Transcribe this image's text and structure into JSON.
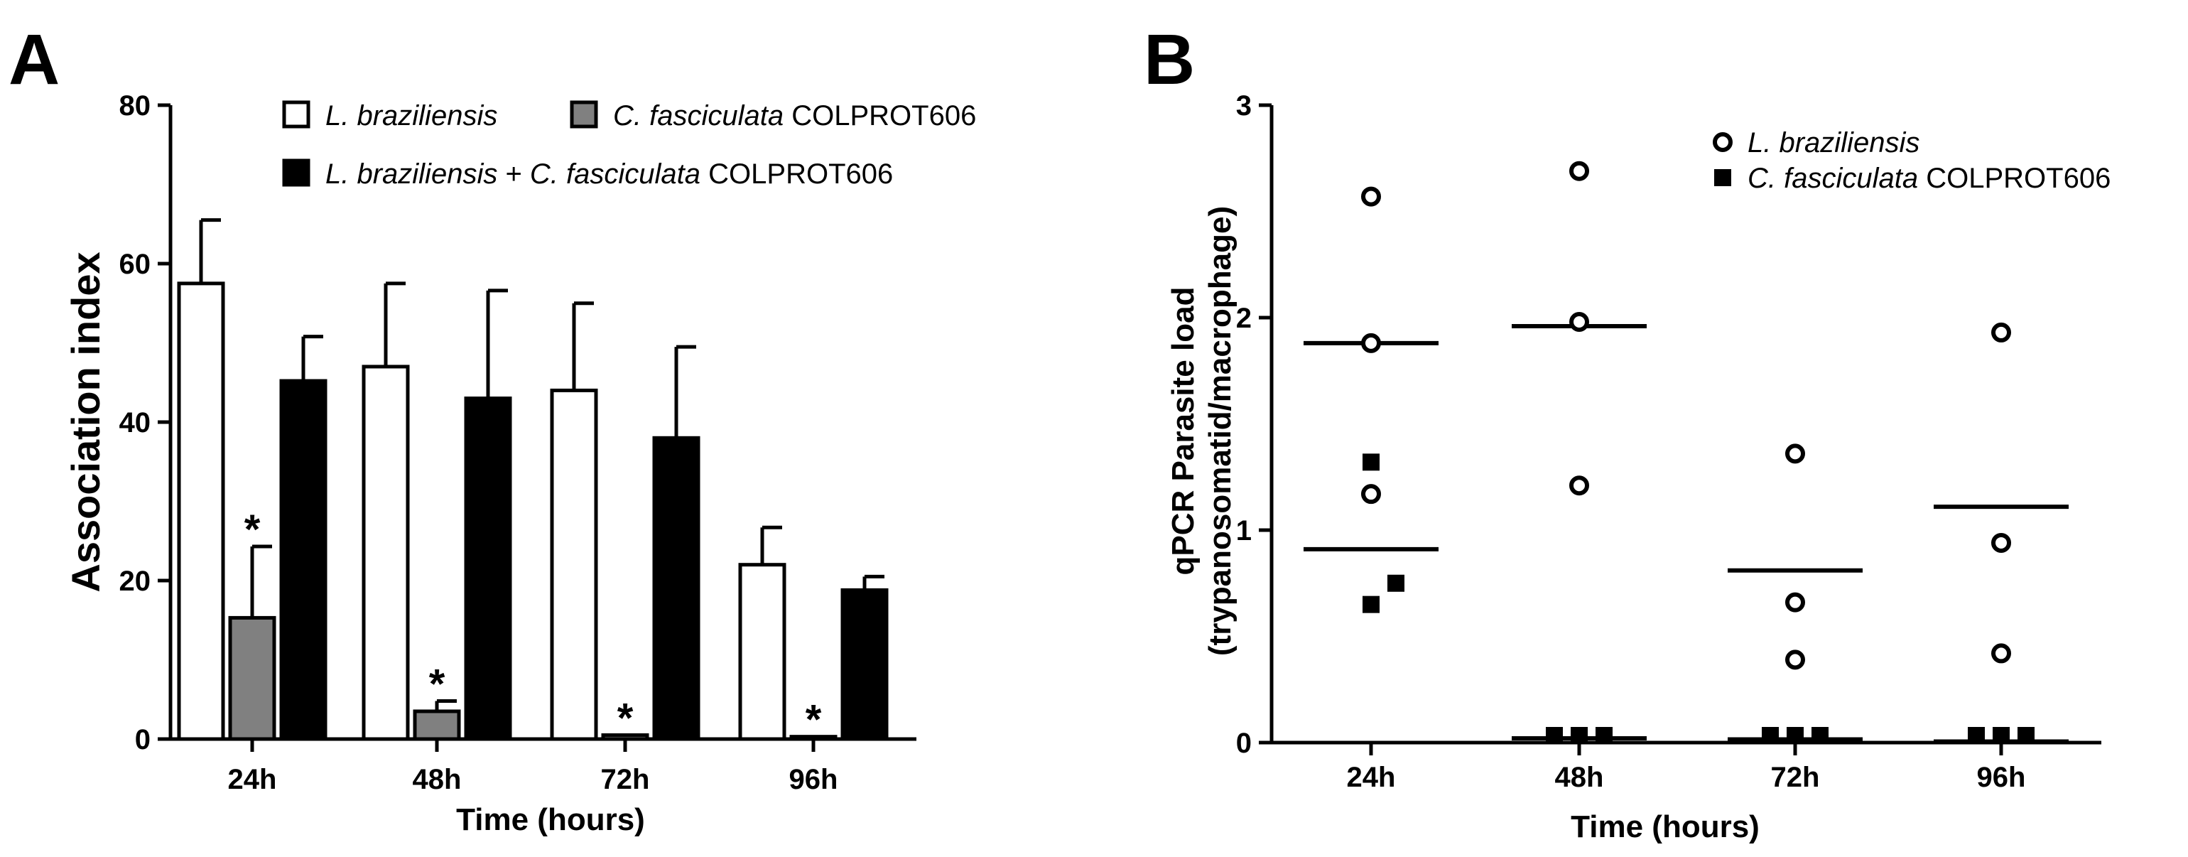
{
  "panel_a_letter": "A",
  "panel_b_letter": "B",
  "chart_data": [
    {
      "type": "bar",
      "panel": "A",
      "xlabel": "Time (hours)",
      "ylabel": "Association index",
      "ylim": [
        0,
        80
      ],
      "yticks": [
        "0",
        "20",
        "40",
        "60",
        "80"
      ],
      "categories": [
        "24h",
        "48h",
        "72h",
        "96h"
      ],
      "legend_placement": "top",
      "series": [
        {
          "name_italic": "L. braziliensis",
          "name_rest": "",
          "fill": "#ffffff",
          "values": [
            57.5,
            47,
            44,
            22
          ],
          "errors": [
            8,
            10.5,
            11,
            4.7
          ]
        },
        {
          "name_italic": "C. fasciculata",
          "name_rest": " COLPROT606",
          "fill": "#808080",
          "values": [
            15.3,
            3.5,
            0.5,
            0.3
          ],
          "errors": [
            9,
            1.3,
            0,
            0
          ]
        },
        {
          "name_italic": "L. braziliensis",
          "name_plain_mid": " + ",
          "name_italic2": "C. fasciculata",
          "name_rest": " COLPROT606",
          "fill": "#000000",
          "values": [
            45.2,
            43,
            38,
            18.8
          ],
          "errors": [
            5.6,
            13.6,
            11.5,
            1.7
          ]
        }
      ],
      "annotations": [
        {
          "text": "*",
          "category": "24h",
          "series": 1
        },
        {
          "text": "*",
          "category": "48h",
          "series": 1
        },
        {
          "text": "*",
          "category": "72h",
          "series": 1
        },
        {
          "text": "*",
          "category": "96h",
          "series": 1
        }
      ]
    },
    {
      "type": "scatter",
      "panel": "B",
      "xlabel": "Time (hours)",
      "ylabel_line1": "qPCR Parasite load",
      "ylabel_line2": "(trypanosomatid/macrophage)",
      "ylim": [
        0,
        3
      ],
      "yticks": [
        "0",
        "1",
        "2",
        "3"
      ],
      "categories": [
        "24h",
        "48h",
        "72h",
        "96h"
      ],
      "legend_placement": "top-right",
      "series": [
        {
          "name_italic": "L. braziliensis",
          "name_rest": "",
          "marker": "open-circle",
          "points": [
            {
              "category": "24h",
              "offset": 0,
              "y": 2.57
            },
            {
              "category": "24h",
              "offset": 0,
              "y": 1.88
            },
            {
              "category": "24h",
              "offset": 0,
              "y": 1.17
            },
            {
              "category": "48h",
              "offset": 0,
              "y": 2.69
            },
            {
              "category": "48h",
              "offset": 0,
              "y": 1.98
            },
            {
              "category": "48h",
              "offset": 0,
              "y": 1.21
            },
            {
              "category": "72h",
              "offset": 0,
              "y": 1.36
            },
            {
              "category": "72h",
              "offset": 0,
              "y": 0.66
            },
            {
              "category": "72h",
              "offset": 0,
              "y": 0.39
            },
            {
              "category": "96h",
              "offset": 0,
              "y": 1.93
            },
            {
              "category": "96h",
              "offset": 0,
              "y": 0.94
            },
            {
              "category": "96h",
              "offset": 0,
              "y": 0.42
            }
          ],
          "means": [
            1.88,
            1.96,
            0.81,
            1.11
          ]
        },
        {
          "name_italic": "C. fasciculata",
          "name_rest": " COLPROT606",
          "marker": "filled-square",
          "points": [
            {
              "category": "24h",
              "offset": 0,
              "y": 1.32
            },
            {
              "category": "24h",
              "offset": 0,
              "y": 0.65
            },
            {
              "category": "24h",
              "offset": 1,
              "y": 0.75
            },
            {
              "category": "48h",
              "offset": -1,
              "y": 0.04
            },
            {
              "category": "48h",
              "offset": 0,
              "y": 0.005
            },
            {
              "category": "48h",
              "offset": 1,
              "y": 0.005
            },
            {
              "category": "72h",
              "offset": -1,
              "y": 0.03
            },
            {
              "category": "72h",
              "offset": 0,
              "y": 0.005
            },
            {
              "category": "72h",
              "offset": 1,
              "y": 0.005
            },
            {
              "category": "96h",
              "offset": -1,
              "y": 0.005
            },
            {
              "category": "96h",
              "offset": 0,
              "y": 0.005
            },
            {
              "category": "96h",
              "offset": 1,
              "y": 0.005
            }
          ],
          "means": [
            0.91,
            0.02,
            0.015,
            0.005
          ]
        }
      ]
    }
  ]
}
